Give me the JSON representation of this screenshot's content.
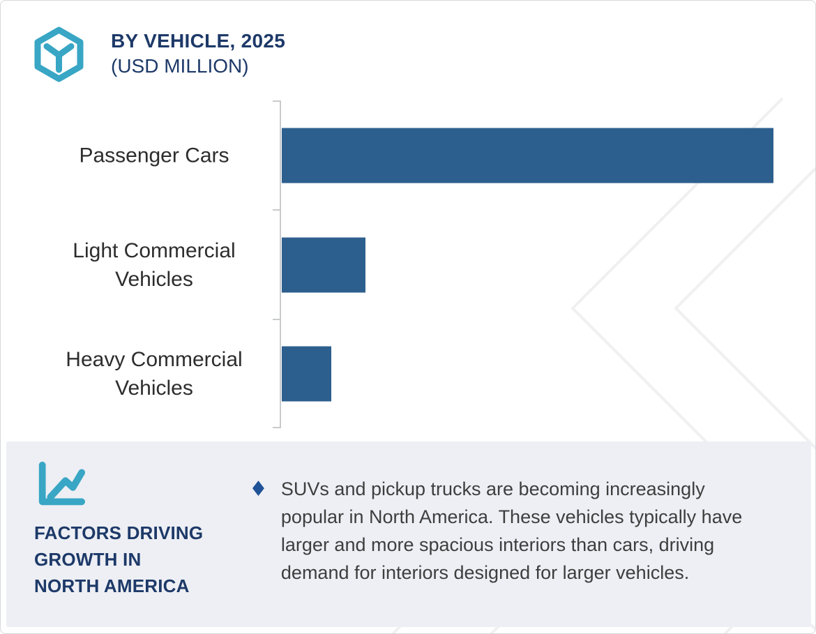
{
  "header": {
    "icon": "hexagon-cube-icon",
    "title": "BY VEHICLE, 2025",
    "subtitle": "(USD MILLION)"
  },
  "chart_data": {
    "type": "bar",
    "orientation": "horizontal",
    "title": "BY VEHICLE, 2025",
    "unit": "USD MILLION",
    "categories": [
      "Passenger Cars",
      "Light Commercial Vehicles",
      "Heavy Commercial Vehicles"
    ],
    "values": [
      100,
      17,
      10
    ],
    "value_scale": "relative percent of largest bar; no numeric axis or data labels shown in image",
    "xlabel": "",
    "ylabel": "",
    "legend": "none",
    "grid": "off",
    "bar_color": "#2d5f8e"
  },
  "factors_panel": {
    "icon": "line-chart-icon",
    "heading_lines": [
      "FACTORS DRIVING",
      "GROWTH IN",
      "NORTH AMERICA"
    ],
    "bullets": [
      {
        "marker": "♦",
        "text_lines": [
          "SUVs and pickup trucks are becoming increasingly",
          "popular in North America. These vehicles typically have",
          "larger and more spacious interiors than cars, driving",
          "demand for interiors designed for larger vehicles."
        ]
      }
    ]
  },
  "colors": {
    "teal": "#38a6c4",
    "navy": "#1d3968",
    "bar": "#2d5f8e",
    "panel_bg": "#edeff4",
    "body_text": "#3e3e3e",
    "label_text": "#2d2d2d",
    "bullet": "#1f5296",
    "axis": "#c9cacc",
    "watermark": "#f0f0f1",
    "frame_border": "#d6d8db"
  }
}
